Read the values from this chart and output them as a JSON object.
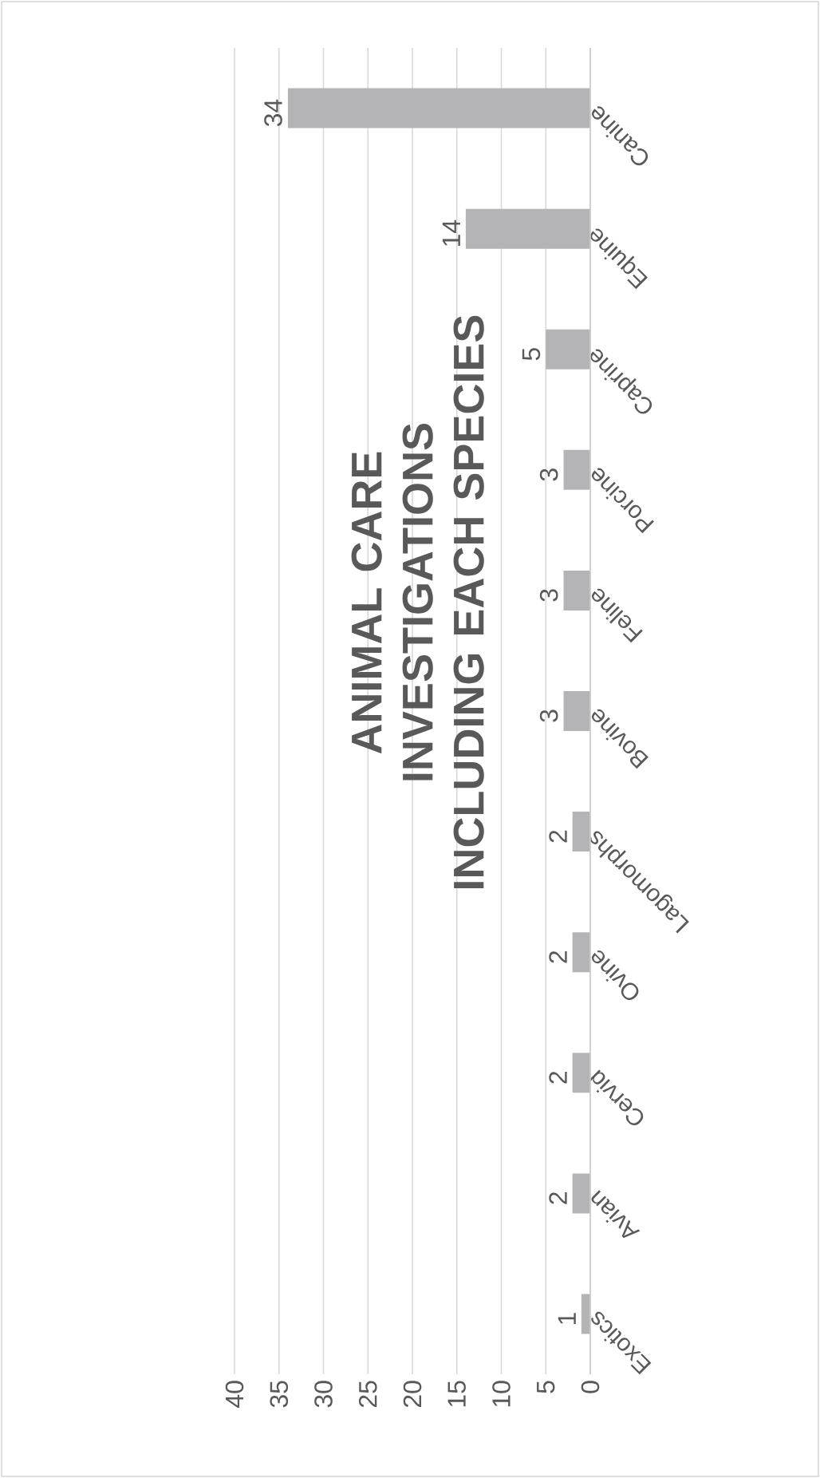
{
  "chart_data": {
    "type": "bar",
    "orientation": "horizontal",
    "title": "ANIMAL CARE INVESTIGATIONS INCLUDING EACH SPECIES",
    "categories": [
      "Canine",
      "Equine",
      "Caprine",
      "Porcine",
      "Feline",
      "Bovine",
      "Lagomorphs",
      "Ovine",
      "Cervid",
      "Avian",
      "Exotics"
    ],
    "values": [
      34,
      14,
      5,
      3,
      3,
      3,
      2,
      2,
      2,
      2,
      1
    ],
    "color": "#b4b4b6",
    "xlim": [
      40,
      0
    ],
    "xticks": [
      40,
      35,
      30,
      25,
      20,
      15,
      10,
      5,
      0
    ],
    "grid": "x",
    "data_labels": true
  }
}
